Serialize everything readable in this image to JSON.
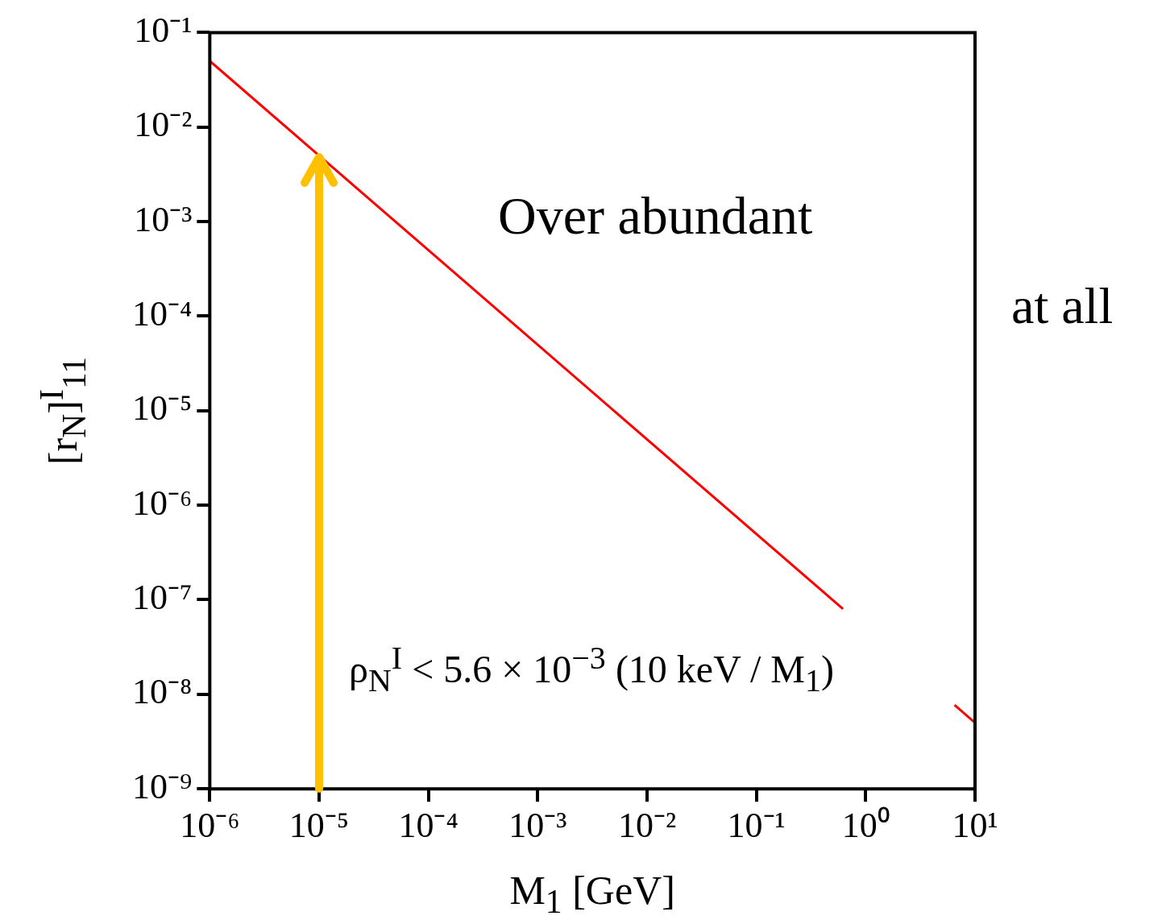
{
  "chart_data": {
    "type": "line",
    "log": "xy",
    "xlabel": "M$_{1}$ [GeV]",
    "ylabel": "[r$_{N}$]$^{I}$$_{11}$",
    "series": [
      {
        "color": "#ff0000",
        "x": [
          1e-06,
          0.62,
          0.8,
          6.5,
          10
        ],
        "values": [
          0.05,
          8e-08,
          null,
          7.7e-09,
          5e-09
        ]
      }
    ],
    "xlim": [
      1e-06,
      10
    ],
    "ylim": [
      1e-09,
      0.1
    ],
    "xticks": [
      {
        "value": 1e-06,
        "label": "10⁻⁶"
      },
      {
        "value": 1e-05,
        "label": "10⁻⁵"
      },
      {
        "value": 0.0001,
        "label": "10⁻⁴"
      },
      {
        "value": 0.001,
        "label": "10⁻³"
      },
      {
        "value": 0.01,
        "label": "10⁻²"
      },
      {
        "value": 0.1,
        "label": "10⁻¹"
      },
      {
        "value": 1,
        "label": "10⁰"
      },
      {
        "value": 10,
        "label": "10¹"
      }
    ],
    "yticks": [
      {
        "value": 1e-09,
        "label": "10⁻⁹"
      },
      {
        "value": 1e-08,
        "label": "10⁻⁸"
      },
      {
        "value": 1e-07,
        "label": "10⁻⁷"
      },
      {
        "value": 1e-06,
        "label": "10⁻⁶"
      },
      {
        "value": 1e-05,
        "label": "10⁻⁵"
      },
      {
        "value": 0.0001,
        "label": "10⁻⁴"
      },
      {
        "value": 0.001,
        "label": "10⁻³"
      },
      {
        "value": 0.01,
        "label": "10⁻²"
      },
      {
        "value": 0.1,
        "label": "10⁻¹"
      }
    ],
    "ref_lines": [
      {
        "axis": "x",
        "value": 1e-05,
        "color": "#ffc000"
      }
    ],
    "annotations": [
      "Over abundant",
      "ρ$_{N}$$^{I}$ < 5.6 × 10$^{−3}$ (10 keV / M$_{1}$)",
      "at all"
    ],
    "grid": false,
    "legend": false,
    "marker": "none"
  }
}
